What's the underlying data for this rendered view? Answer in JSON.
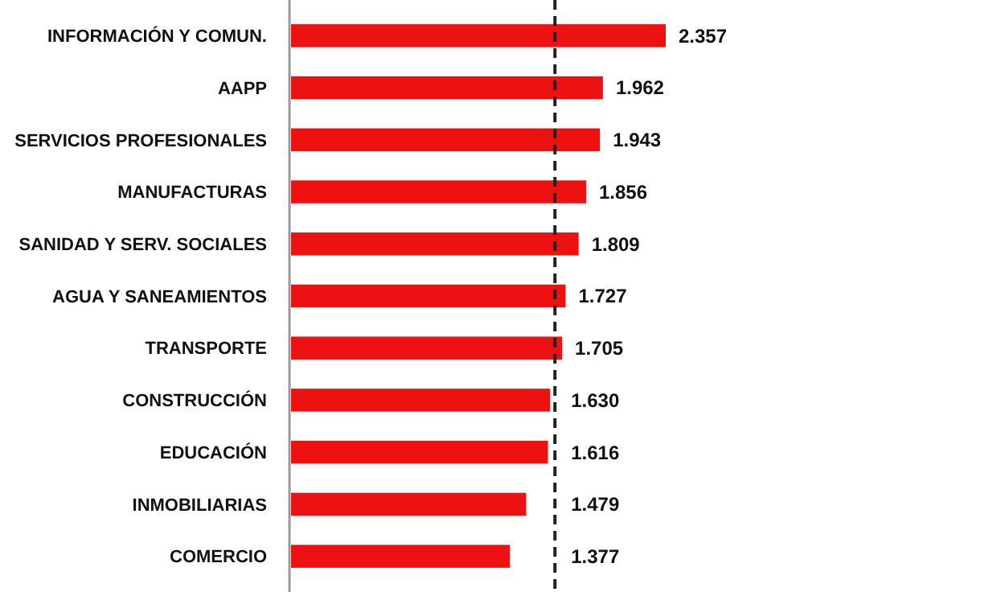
{
  "chart_data": {
    "type": "bar",
    "orientation": "horizontal",
    "tick_labels": "y",
    "categories": [
      "INFORMACIÓN Y COMUN.",
      "AAPP",
      "SERVICIOS PROFESIONALES",
      "MANUFACTURAS",
      "SANIDAD Y SERV. SOCIALES",
      "AGUA Y SANEAMIENTOS",
      "TRANSPORTE",
      "CONSTRUCCIÓN",
      "EDUCACIÓN",
      "INMOBILIARIAS",
      "COMERCIO"
    ],
    "values": [
      2357,
      1962,
      1943,
      1856,
      1809,
      1727,
      1705,
      1630,
      1616,
      1479,
      1377
    ],
    "value_labels": [
      "2.357",
      "1.962",
      "1.943",
      "1.856",
      "1.809",
      "1.727",
      "1.705",
      "1.630",
      "1.616",
      "1.479",
      "1.377"
    ],
    "color": "#ee1111",
    "ref_lines": [
      {
        "axis": "x",
        "value": 1660,
        "color": "#222222",
        "line_style": "dashed"
      }
    ]
  }
}
